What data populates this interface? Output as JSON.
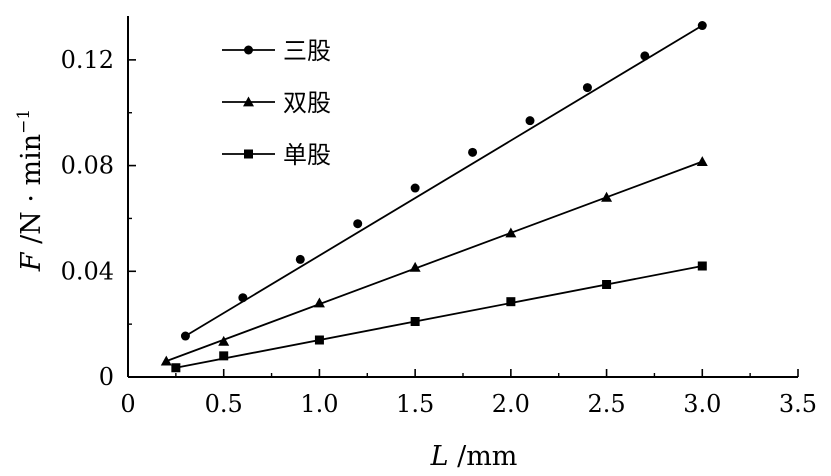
{
  "chart_data": {
    "type": "line",
    "xlabel": {
      "italic": "L",
      "rest": " /mm"
    },
    "ylabel": {
      "italic": "F",
      "rest": " /N · min",
      "sup": "−1"
    },
    "xlim": [
      0,
      3.5
    ],
    "ylim": [
      0,
      0.135
    ],
    "xticks": [
      0,
      0.5,
      1.0,
      1.5,
      2.0,
      2.5,
      3.0,
      3.5
    ],
    "xtick_labels": [
      "0",
      "0.5",
      "1.0",
      "1.5",
      "2.0",
      "2.5",
      "3.0",
      "3.5"
    ],
    "yticks": [
      0,
      0.04,
      0.08,
      0.12
    ],
    "ytick_labels": [
      "0",
      "0.04",
      "0.08",
      "0.12"
    ],
    "grid": false,
    "legend_position": "top-left",
    "series": [
      {
        "name": "三股",
        "marker": "circle",
        "x": [
          0.3,
          0.6,
          0.9,
          1.2,
          1.5,
          1.8,
          2.1,
          2.4,
          2.7,
          3.0
        ],
        "y": [
          0.0155,
          0.03,
          0.0445,
          0.058,
          0.0715,
          0.085,
          0.097,
          0.1095,
          0.1215,
          0.133
        ],
        "fit": {
          "x": [
            0.3,
            3.0
          ],
          "y": [
            0.0155,
            0.133
          ]
        }
      },
      {
        "name": "双股",
        "marker": "triangle",
        "x": [
          0.2,
          0.5,
          1.0,
          1.5,
          2.0,
          2.5,
          3.0
        ],
        "y": [
          0.006,
          0.0135,
          0.028,
          0.0415,
          0.0545,
          0.068,
          0.0815
        ],
        "fit": {
          "x": [
            0.2,
            3.0
          ],
          "y": [
            0.006,
            0.0815
          ]
        }
      },
      {
        "name": "单股",
        "marker": "square",
        "x": [
          0.25,
          0.5,
          1.0,
          1.5,
          2.0,
          2.5,
          3.0
        ],
        "y": [
          0.0035,
          0.008,
          0.014,
          0.021,
          0.0285,
          0.035,
          0.042
        ],
        "fit": {
          "x": [
            0.25,
            3.0
          ],
          "y": [
            0.0035,
            0.042
          ]
        }
      }
    ]
  }
}
